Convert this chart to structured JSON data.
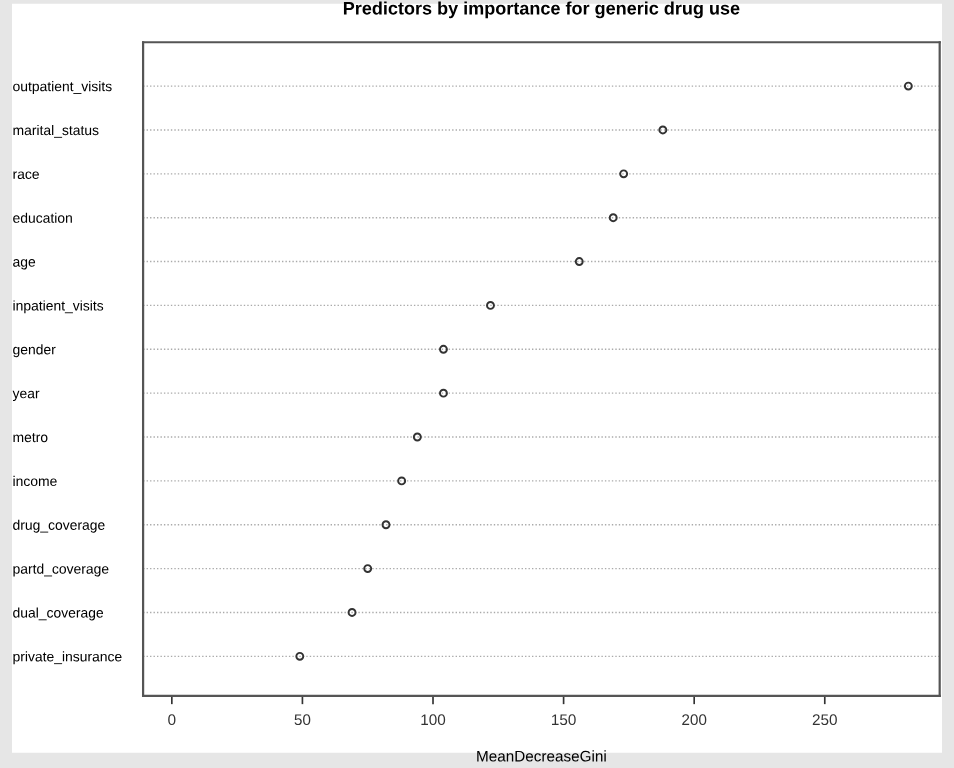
{
  "chart_data": {
    "type": "scatter",
    "orientation": "horizontal",
    "title": "Predictors by importance for generic drug use",
    "xlabel": "MeanDecreaseGini",
    "categories": [
      "outpatient_visits",
      "marital_status",
      "race",
      "education",
      "age",
      "inpatient_visits",
      "gender",
      "year",
      "metro",
      "income",
      "drug_coverage",
      "partd_coverage",
      "dual_coverage",
      "private_insurance"
    ],
    "values": [
      282,
      188,
      173,
      169,
      156,
      122,
      104,
      104,
      94,
      88,
      82,
      75,
      69,
      49
    ],
    "color": "#333333",
    "marker": "circle",
    "grid": "y",
    "xlim": [
      -11,
      294
    ],
    "xticks": [
      0,
      50,
      100,
      150,
      200,
      250
    ]
  }
}
